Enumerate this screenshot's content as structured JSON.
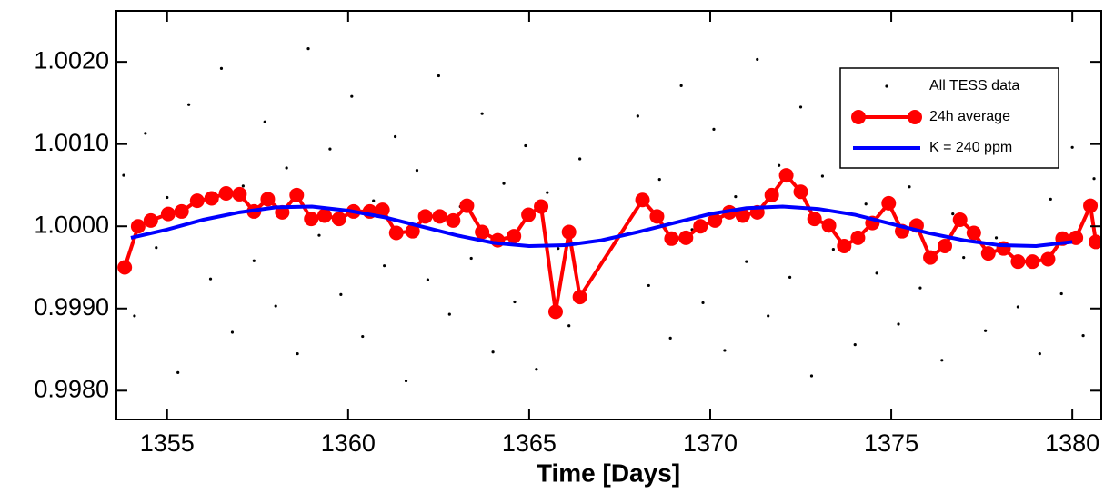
{
  "chart_data": {
    "type": "scatter-line",
    "xlabel": "Time [Days]",
    "xlim": [
      1353.6,
      1380.8
    ],
    "ylim": [
      0.99765,
      1.00262
    ],
    "xticks": [
      1355,
      1360,
      1365,
      1370,
      1375,
      1380
    ],
    "yticks": [
      {
        "value": 0.998,
        "label": "0.9980"
      },
      {
        "value": 0.999,
        "label": "0.9990"
      },
      {
        "value": 1.0,
        "label": "1.0000"
      },
      {
        "value": 1.001,
        "label": "1.0010"
      },
      {
        "value": 1.002,
        "label": "1.0020"
      }
    ],
    "legend": "upper right",
    "series": [
      {
        "name": "All TESS data",
        "kind": "points",
        "color": "#000000",
        "x": [
          1353.8,
          1354.1,
          1354.4,
          1354.7,
          1355.0,
          1355.3,
          1355.6,
          1355.9,
          1356.2,
          1356.5,
          1356.8,
          1357.1,
          1357.4,
          1357.7,
          1358.0,
          1358.3,
          1358.6,
          1358.9,
          1359.2,
          1359.5,
          1359.8,
          1360.1,
          1360.4,
          1360.7,
          1361.0,
          1361.3,
          1361.6,
          1361.9,
          1362.2,
          1362.5,
          1362.8,
          1363.1,
          1363.4,
          1363.7,
          1364.0,
          1364.3,
          1364.6,
          1364.9,
          1365.2,
          1365.5,
          1365.8,
          1366.1,
          1366.4,
          1368.0,
          1368.3,
          1368.6,
          1368.9,
          1369.2,
          1369.5,
          1369.8,
          1370.1,
          1370.4,
          1370.7,
          1371.0,
          1371.3,
          1371.6,
          1371.9,
          1372.2,
          1372.5,
          1372.8,
          1373.1,
          1373.4,
          1373.7,
          1374.0,
          1374.3,
          1374.6,
          1374.9,
          1375.2,
          1375.5,
          1375.8,
          1376.1,
          1376.4,
          1376.7,
          1377.0,
          1377.3,
          1377.6,
          1377.9,
          1378.2,
          1378.5,
          1378.8,
          1379.1,
          1379.4,
          1379.7,
          1380.0,
          1380.3,
          1380.6
        ],
        "values": [
          1.00062,
          0.99891,
          1.00113,
          0.99974,
          1.00035,
          0.99822,
          1.00148,
          1.00007,
          0.99936,
          1.00192,
          0.99871,
          1.00049,
          0.99958,
          1.00127,
          0.99903,
          1.00071,
          0.99845,
          1.00216,
          0.99989,
          1.00094,
          0.99917,
          1.00158,
          0.99866,
          1.00031,
          0.99952,
          1.00109,
          0.99812,
          1.00068,
          0.99935,
          1.00183,
          0.99893,
          1.00024,
          0.99961,
          1.00137,
          0.99847,
          1.00052,
          0.99908,
          1.00098,
          0.99826,
          1.00041,
          0.99973,
          0.99879,
          1.00082,
          1.00134,
          0.99928,
          1.00057,
          0.99864,
          1.00171,
          0.99996,
          0.99907,
          1.00118,
          0.99849,
          1.00036,
          0.99957,
          1.00203,
          0.99891,
          1.00074,
          0.99938,
          1.00145,
          0.99818,
          1.00061,
          0.99972,
          1.00112,
          0.99856,
          1.00027,
          0.99943,
          1.00166,
          0.99881,
          1.00048,
          0.99925,
          1.00103,
          0.99837,
          1.00015,
          0.99962,
          1.00124,
          0.99873,
          0.99986,
          1.00079,
          0.99902,
          1.00151,
          0.99845,
          1.00033,
          0.99918,
          1.00096,
          0.99867,
          1.00058
        ]
      },
      {
        "name": "24h average",
        "kind": "line-markers",
        "color": "#ff0000",
        "x": [
          1353.83,
          1354.2,
          1354.55,
          1355.03,
          1355.4,
          1355.83,
          1356.23,
          1356.63,
          1357.0,
          1357.4,
          1357.78,
          1358.18,
          1358.58,
          1358.98,
          1359.35,
          1359.75,
          1360.15,
          1360.6,
          1360.95,
          1361.33,
          1361.78,
          1362.13,
          1362.53,
          1362.9,
          1363.28,
          1363.7,
          1364.13,
          1364.58,
          1364.98,
          1365.33,
          1365.73,
          1366.1,
          1366.4,
          1368.13,
          1368.53,
          1368.93,
          1369.33,
          1369.73,
          1370.13,
          1370.53,
          1370.9,
          1371.3,
          1371.7,
          1372.1,
          1372.5,
          1372.88,
          1373.28,
          1373.7,
          1374.08,
          1374.48,
          1374.93,
          1375.3,
          1375.7,
          1376.08,
          1376.48,
          1376.9,
          1377.28,
          1377.68,
          1378.1,
          1378.5,
          1378.9,
          1379.33,
          1379.73,
          1380.1,
          1380.5,
          1380.65
        ],
        "values": [
          0.9995,
          1.0,
          1.00007,
          1.00015,
          1.00018,
          1.00031,
          1.00034,
          1.0004,
          1.00039,
          1.00018,
          1.00033,
          1.00017,
          1.00038,
          1.00009,
          1.00013,
          1.00009,
          1.00018,
          1.00018,
          1.0002,
          0.99992,
          0.99994,
          1.00012,
          1.00012,
          1.00007,
          1.00025,
          0.99993,
          0.99983,
          0.99988,
          1.00014,
          1.00024,
          0.99896,
          0.99993,
          0.99914,
          1.00032,
          1.00012,
          0.99985,
          0.99986,
          1.0,
          1.00007,
          1.00017,
          1.00013,
          1.00017,
          1.00038,
          1.00062,
          1.00042,
          1.00009,
          1.00001,
          0.99976,
          0.99986,
          1.00004,
          1.00028,
          0.99994,
          1.00001,
          0.99962,
          0.99976,
          1.00008,
          0.99992,
          0.99967,
          0.99973,
          0.99957,
          0.99957,
          0.9996,
          0.99985,
          0.99986,
          1.00025,
          0.99981
        ]
      },
      {
        "name": "K = 240 ppm",
        "kind": "line",
        "color": "#0000ff",
        "x": [
          1354,
          1355,
          1356,
          1357,
          1358,
          1359,
          1360,
          1361,
          1362,
          1363,
          1364,
          1365,
          1366,
          1367,
          1368,
          1369,
          1370,
          1371,
          1372,
          1373,
          1374,
          1375,
          1376,
          1377,
          1378,
          1379,
          1380
        ],
        "values": [
          0.99986,
          0.99996,
          1.00008,
          1.00017,
          1.00023,
          1.00024,
          1.00019,
          1.00011,
          1.0,
          0.99989,
          0.9998,
          0.99976,
          0.99977,
          0.99983,
          0.99993,
          1.00004,
          1.00015,
          1.00022,
          1.00024,
          1.00021,
          1.00014,
          1.00003,
          0.99992,
          0.99983,
          0.99977,
          0.99976,
          0.99981
        ]
      }
    ]
  }
}
